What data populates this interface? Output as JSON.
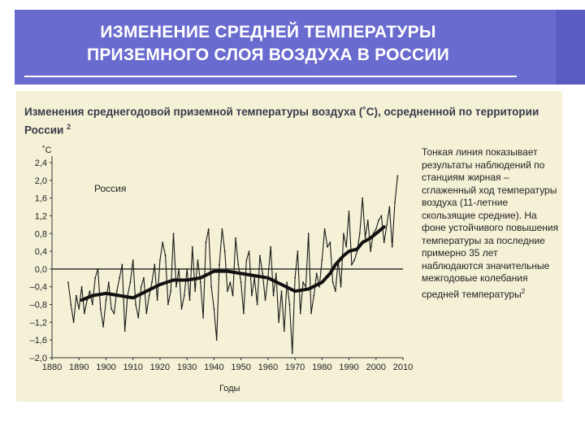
{
  "slide": {
    "title_line1": "ИЗМЕНЕНИЕ СРЕДНЕЙ ТЕМПЕРАТУРЫ",
    "title_line2": "ПРИЗЕМНОГО СЛОЯ ВОЗДУХА В РОССИИ"
  },
  "colors": {
    "banner": "#6a6bcf",
    "panel": "#f4f1d6"
  },
  "chart_data": {
    "type": "line",
    "title": "Изменения среднегодовой приземной температуры воздуха (˚С), осредненной по территории России",
    "title_footnote": "2",
    "ylabel": "˚С",
    "xlabel": "Годы",
    "series_label": "Россия",
    "ylim": [
      -2.0,
      2.4
    ],
    "yticks": [
      2.4,
      2.0,
      1.6,
      1.2,
      0.8,
      0.4,
      0.0,
      -0.4,
      -0.8,
      -1.2,
      -1.6,
      -2.0
    ],
    "ytick_labels": [
      "2,4",
      "2,0",
      "1,6",
      "1,2",
      "0,8",
      "0,4",
      "0,0",
      "–0,4",
      "–0,8",
      "–1,2",
      "–1,6",
      "–2,0"
    ],
    "xlim": [
      1880,
      2010
    ],
    "xticks": [
      1880,
      1890,
      1900,
      1910,
      1920,
      1930,
      1940,
      1950,
      1960,
      1970,
      1980,
      1990,
      2000,
      2010
    ],
    "series": [
      {
        "role": "annual",
        "x": [
          1886,
          1887,
          1888,
          1889,
          1890,
          1891,
          1892,
          1893,
          1894,
          1895,
          1896,
          1897,
          1898,
          1899,
          1900,
          1901,
          1902,
          1903,
          1904,
          1905,
          1906,
          1907,
          1908,
          1909,
          1910,
          1911,
          1912,
          1913,
          1914,
          1915,
          1916,
          1917,
          1918,
          1919,
          1920,
          1921,
          1922,
          1923,
          1924,
          1925,
          1926,
          1927,
          1928,
          1929,
          1930,
          1931,
          1932,
          1933,
          1934,
          1935,
          1936,
          1937,
          1938,
          1939,
          1940,
          1941,
          1942,
          1943,
          1944,
          1945,
          1946,
          1947,
          1948,
          1949,
          1950,
          1951,
          1952,
          1953,
          1954,
          1955,
          1956,
          1957,
          1958,
          1959,
          1960,
          1961,
          1962,
          1963,
          1964,
          1965,
          1966,
          1967,
          1968,
          1969,
          1970,
          1971,
          1972,
          1973,
          1974,
          1975,
          1976,
          1977,
          1978,
          1979,
          1980,
          1981,
          1982,
          1983,
          1984,
          1985,
          1986,
          1987,
          1988,
          1989,
          1990,
          1991,
          1992,
          1993,
          1994,
          1995,
          1996,
          1997,
          1998,
          1999,
          2000,
          2001,
          2002,
          2003,
          2004,
          2005,
          2006,
          2007,
          2008
        ],
        "values": [
          -0.3,
          -0.8,
          -1.2,
          -0.6,
          -0.9,
          -0.4,
          -1.0,
          -0.7,
          -0.5,
          -0.8,
          -0.2,
          0.0,
          -0.9,
          -1.3,
          -0.7,
          -0.3,
          -0.9,
          -1.0,
          -0.5,
          -0.2,
          0.1,
          -1.4,
          -0.6,
          -0.3,
          0.2,
          -0.8,
          -1.1,
          -0.4,
          -0.2,
          -1.0,
          -0.6,
          -0.3,
          0.1,
          -0.7,
          0.2,
          0.6,
          0.3,
          -0.8,
          -0.5,
          0.8,
          -0.4,
          0.0,
          -0.9,
          -0.6,
          0.0,
          -0.7,
          0.5,
          -0.5,
          0.2,
          -0.3,
          -1.1,
          0.6,
          0.9,
          -0.4,
          -0.9,
          -1.6,
          0.1,
          0.9,
          0.4,
          -0.5,
          -0.3,
          -0.6,
          0.7,
          0.1,
          -0.3,
          -1.0,
          0.2,
          0.4,
          -0.6,
          -0.2,
          -0.8,
          0.3,
          -0.1,
          -0.7,
          -0.2,
          0.5,
          -0.6,
          -0.1,
          -1.2,
          -0.5,
          -1.4,
          -0.3,
          -0.8,
          -1.9,
          -0.2,
          0.4,
          -1.0,
          -0.3,
          -0.4,
          0.8,
          -1.0,
          -0.6,
          -0.1,
          -0.4,
          0.2,
          0.9,
          0.5,
          0.6,
          -0.3,
          -0.5,
          0.2,
          -0.4,
          0.8,
          0.5,
          1.3,
          0.1,
          0.2,
          0.4,
          0.8,
          1.6,
          0.7,
          1.1,
          0.4,
          0.8,
          0.9,
          1.1,
          1.2,
          0.6,
          1.0,
          1.4,
          0.5,
          1.5,
          2.1
        ]
      },
      {
        "role": "smoothed",
        "x": [
          1891,
          1895,
          1900,
          1905,
          1910,
          1915,
          1920,
          1925,
          1930,
          1935,
          1940,
          1945,
          1950,
          1955,
          1960,
          1965,
          1970,
          1975,
          1980,
          1983,
          1985,
          1988,
          1990,
          1993,
          1995,
          1998,
          2000,
          2003
        ],
        "values": [
          -0.7,
          -0.6,
          -0.55,
          -0.6,
          -0.65,
          -0.5,
          -0.35,
          -0.25,
          -0.25,
          -0.2,
          -0.05,
          -0.05,
          -0.1,
          -0.15,
          -0.2,
          -0.35,
          -0.5,
          -0.45,
          -0.3,
          -0.1,
          0.1,
          0.3,
          0.4,
          0.45,
          0.6,
          0.7,
          0.8,
          0.95
        ]
      }
    ]
  },
  "note": {
    "text": "Тонкая линия показывает результаты наблюдений по станциям жирная – сглаженный ход температуры воздуха (11-летние скользящие средние). На фоне устойчивого повышения температуры за последние примерно 35 лет наблюдаются значительные межгодовые колебания средней температуры",
    "footnote": "2"
  }
}
